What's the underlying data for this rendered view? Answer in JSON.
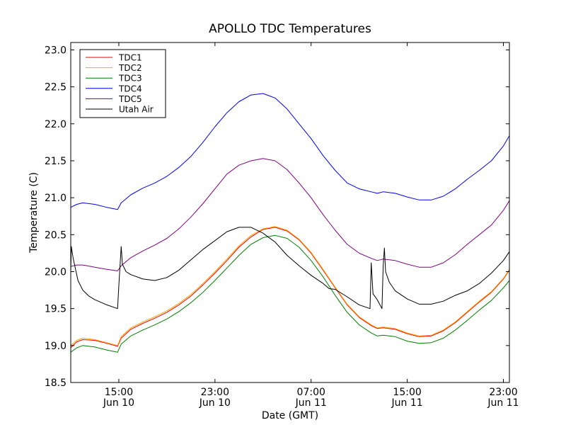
{
  "chart_data": {
    "type": "line",
    "title": "APOLLO TDC Temperatures",
    "xlabel": "Date (GMT)",
    "ylabel": "Temperature (C)",
    "x_unit": "hours since Jun 10 00:00 GMT",
    "xlim": [
      11.0,
      47.5
    ],
    "ylim": [
      18.5,
      23.1
    ],
    "y_ticks": [
      {
        "value": 18.5,
        "label": "18.5"
      },
      {
        "value": 19.0,
        "label": "19.0"
      },
      {
        "value": 19.5,
        "label": "19.5"
      },
      {
        "value": 20.0,
        "label": "20.0"
      },
      {
        "value": 20.5,
        "label": "20.5"
      },
      {
        "value": 21.0,
        "label": "21.0"
      },
      {
        "value": 21.5,
        "label": "21.5"
      },
      {
        "value": 22.0,
        "label": "22.0"
      },
      {
        "value": 22.5,
        "label": "22.5"
      },
      {
        "value": 23.0,
        "label": "23.0"
      }
    ],
    "x_ticks": [
      {
        "value": 15,
        "time": "15:00",
        "date": "Jun 10"
      },
      {
        "value": 23,
        "time": "23:00",
        "date": "Jun 10"
      },
      {
        "value": 31,
        "time": "07:00",
        "date": "Jun 11"
      },
      {
        "value": 39,
        "time": "15:00",
        "date": "Jun 11"
      },
      {
        "value": 47,
        "time": "23:00",
        "date": "Jun 11"
      }
    ],
    "legend_position": "top-left",
    "grid": false,
    "series": [
      {
        "name": "TDC1",
        "color": "#ff0000",
        "points": [
          [
            11,
            18.97
          ],
          [
            11.5,
            19.05
          ],
          [
            12,
            19.08
          ],
          [
            13,
            19.07
          ],
          [
            14,
            19.03
          ],
          [
            14.9,
            18.99
          ],
          [
            15.2,
            19.1
          ],
          [
            16,
            19.22
          ],
          [
            17,
            19.3
          ],
          [
            18,
            19.37
          ],
          [
            19,
            19.45
          ],
          [
            20,
            19.55
          ],
          [
            21,
            19.67
          ],
          [
            22,
            19.82
          ],
          [
            23,
            19.98
          ],
          [
            24,
            20.15
          ],
          [
            25,
            20.33
          ],
          [
            26,
            20.47
          ],
          [
            27,
            20.57
          ],
          [
            28,
            20.6
          ],
          [
            29,
            20.55
          ],
          [
            30,
            20.43
          ],
          [
            31,
            20.25
          ],
          [
            32,
            20.02
          ],
          [
            33,
            19.78
          ],
          [
            34,
            19.55
          ],
          [
            35,
            19.38
          ],
          [
            36,
            19.27
          ],
          [
            36.5,
            19.23
          ],
          [
            37,
            19.24
          ],
          [
            38,
            19.22
          ],
          [
            39,
            19.16
          ],
          [
            40,
            19.12
          ],
          [
            41,
            19.13
          ],
          [
            42,
            19.2
          ],
          [
            43,
            19.31
          ],
          [
            44,
            19.45
          ],
          [
            45,
            19.59
          ],
          [
            46,
            19.72
          ],
          [
            47,
            19.9
          ],
          [
            47.5,
            20.02
          ]
        ]
      },
      {
        "name": "TDC2",
        "color": "#ffa500",
        "points": [
          [
            11,
            19.0
          ],
          [
            11.5,
            19.07
          ],
          [
            12,
            19.1
          ],
          [
            13,
            19.08
          ],
          [
            14,
            19.04
          ],
          [
            14.9,
            19.0
          ],
          [
            15.2,
            19.12
          ],
          [
            16,
            19.24
          ],
          [
            17,
            19.32
          ],
          [
            18,
            19.39
          ],
          [
            19,
            19.47
          ],
          [
            20,
            19.57
          ],
          [
            21,
            19.69
          ],
          [
            22,
            19.84
          ],
          [
            23,
            20.0
          ],
          [
            24,
            20.17
          ],
          [
            25,
            20.35
          ],
          [
            26,
            20.49
          ],
          [
            27,
            20.58
          ],
          [
            28,
            20.61
          ],
          [
            29,
            20.56
          ],
          [
            30,
            20.44
          ],
          [
            31,
            20.26
          ],
          [
            32,
            20.03
          ],
          [
            33,
            19.79
          ],
          [
            34,
            19.56
          ],
          [
            35,
            19.39
          ],
          [
            36,
            19.28
          ],
          [
            36.5,
            19.24
          ],
          [
            37,
            19.25
          ],
          [
            38,
            19.23
          ],
          [
            39,
            19.17
          ],
          [
            40,
            19.13
          ],
          [
            41,
            19.14
          ],
          [
            42,
            19.21
          ],
          [
            43,
            19.32
          ],
          [
            44,
            19.46
          ],
          [
            45,
            19.6
          ],
          [
            46,
            19.73
          ],
          [
            47,
            19.91
          ],
          [
            47.5,
            20.03
          ]
        ]
      },
      {
        "name": "TDC3",
        "color": "#008000",
        "points": [
          [
            11,
            18.91
          ],
          [
            11.5,
            18.97
          ],
          [
            12,
            19.0
          ],
          [
            13,
            18.98
          ],
          [
            14,
            18.94
          ],
          [
            14.9,
            18.91
          ],
          [
            15.2,
            19.02
          ],
          [
            16,
            19.13
          ],
          [
            17,
            19.21
          ],
          [
            18,
            19.28
          ],
          [
            19,
            19.36
          ],
          [
            20,
            19.46
          ],
          [
            21,
            19.58
          ],
          [
            22,
            19.72
          ],
          [
            23,
            19.88
          ],
          [
            24,
            20.05
          ],
          [
            25,
            20.22
          ],
          [
            26,
            20.37
          ],
          [
            27,
            20.46
          ],
          [
            28,
            20.49
          ],
          [
            29,
            20.45
          ],
          [
            30,
            20.33
          ],
          [
            31,
            20.15
          ],
          [
            32,
            19.93
          ],
          [
            33,
            19.68
          ],
          [
            34,
            19.45
          ],
          [
            35,
            19.28
          ],
          [
            36,
            19.17
          ],
          [
            36.5,
            19.13
          ],
          [
            37,
            19.14
          ],
          [
            38,
            19.12
          ],
          [
            39,
            19.06
          ],
          [
            40,
            19.03
          ],
          [
            41,
            19.04
          ],
          [
            42,
            19.1
          ],
          [
            43,
            19.21
          ],
          [
            44,
            19.34
          ],
          [
            45,
            19.48
          ],
          [
            46,
            19.61
          ],
          [
            47,
            19.78
          ],
          [
            47.5,
            19.88
          ]
        ]
      },
      {
        "name": "TDC4",
        "color": "#0000ff",
        "points": [
          [
            11,
            20.87
          ],
          [
            11.5,
            20.91
          ],
          [
            12,
            20.93
          ],
          [
            13,
            20.91
          ],
          [
            14,
            20.87
          ],
          [
            14.9,
            20.84
          ],
          [
            15.2,
            20.93
          ],
          [
            16,
            21.04
          ],
          [
            17,
            21.13
          ],
          [
            18,
            21.2
          ],
          [
            19,
            21.29
          ],
          [
            20,
            21.41
          ],
          [
            21,
            21.56
          ],
          [
            22,
            21.75
          ],
          [
            23,
            21.96
          ],
          [
            24,
            22.15
          ],
          [
            25,
            22.3
          ],
          [
            26,
            22.39
          ],
          [
            27,
            22.41
          ],
          [
            28,
            22.35
          ],
          [
            29,
            22.2
          ],
          [
            30,
            22.0
          ],
          [
            31,
            21.8
          ],
          [
            32,
            21.57
          ],
          [
            33,
            21.37
          ],
          [
            34,
            21.2
          ],
          [
            35,
            21.12
          ],
          [
            36,
            21.08
          ],
          [
            36.5,
            21.06
          ],
          [
            37,
            21.08
          ],
          [
            38,
            21.06
          ],
          [
            39,
            21.01
          ],
          [
            40,
            20.97
          ],
          [
            41,
            20.97
          ],
          [
            42,
            21.02
          ],
          [
            43,
            21.12
          ],
          [
            44,
            21.25
          ],
          [
            45,
            21.37
          ],
          [
            46,
            21.5
          ],
          [
            47,
            21.7
          ],
          [
            47.5,
            21.84
          ]
        ]
      },
      {
        "name": "TDC5",
        "color": "#800080",
        "points": [
          [
            11,
            20.07
          ],
          [
            11.5,
            20.09
          ],
          [
            12,
            20.09
          ],
          [
            13,
            20.06
          ],
          [
            14,
            20.03
          ],
          [
            14.9,
            20.01
          ],
          [
            15.2,
            20.08
          ],
          [
            16,
            20.19
          ],
          [
            17,
            20.28
          ],
          [
            18,
            20.36
          ],
          [
            19,
            20.45
          ],
          [
            20,
            20.58
          ],
          [
            21,
            20.74
          ],
          [
            22,
            20.92
          ],
          [
            23,
            21.12
          ],
          [
            24,
            21.32
          ],
          [
            25,
            21.44
          ],
          [
            26,
            21.5
          ],
          [
            27,
            21.53
          ],
          [
            28,
            21.5
          ],
          [
            29,
            21.38
          ],
          [
            30,
            21.2
          ],
          [
            31,
            21.0
          ],
          [
            32,
            20.77
          ],
          [
            33,
            20.56
          ],
          [
            34,
            20.37
          ],
          [
            35,
            20.25
          ],
          [
            36,
            20.18
          ],
          [
            36.5,
            20.15
          ],
          [
            37,
            20.17
          ],
          [
            38,
            20.15
          ],
          [
            39,
            20.1
          ],
          [
            40,
            20.06
          ],
          [
            41,
            20.06
          ],
          [
            42,
            20.12
          ],
          [
            43,
            20.23
          ],
          [
            44,
            20.37
          ],
          [
            45,
            20.5
          ],
          [
            46,
            20.63
          ],
          [
            47,
            20.83
          ],
          [
            47.5,
            20.96
          ]
        ]
      },
      {
        "name": "Utah Air",
        "color": "#000000",
        "points": [
          [
            11,
            20.0
          ],
          [
            11.05,
            20.34
          ],
          [
            11.2,
            20.18
          ],
          [
            11.6,
            19.88
          ],
          [
            12,
            19.75
          ],
          [
            12.5,
            19.67
          ],
          [
            13,
            19.62
          ],
          [
            14,
            19.55
          ],
          [
            14.9,
            19.5
          ],
          [
            15,
            19.8
          ],
          [
            15.2,
            20.34
          ],
          [
            15.3,
            20.1
          ],
          [
            15.6,
            20.0
          ],
          [
            16,
            19.96
          ],
          [
            17,
            19.9
          ],
          [
            18,
            19.88
          ],
          [
            19,
            19.92
          ],
          [
            20,
            20.02
          ],
          [
            21,
            20.16
          ],
          [
            22,
            20.3
          ],
          [
            23,
            20.42
          ],
          [
            24,
            20.54
          ],
          [
            25,
            20.6
          ],
          [
            26,
            20.6
          ],
          [
            27,
            20.52
          ],
          [
            28,
            20.4
          ],
          [
            29,
            20.22
          ],
          [
            30,
            20.08
          ],
          [
            31,
            19.95
          ],
          [
            32,
            19.84
          ],
          [
            32.5,
            19.77
          ],
          [
            33,
            19.76
          ],
          [
            34,
            19.66
          ],
          [
            35,
            19.55
          ],
          [
            35.9,
            19.5
          ],
          [
            36,
            20.12
          ],
          [
            36.15,
            19.7
          ],
          [
            36.5,
            19.62
          ],
          [
            36.9,
            19.5
          ],
          [
            37,
            20.08
          ],
          [
            37.1,
            20.32
          ],
          [
            37.2,
            20.0
          ],
          [
            37.5,
            19.86
          ],
          [
            38,
            19.74
          ],
          [
            39,
            19.63
          ],
          [
            40,
            19.56
          ],
          [
            41,
            19.56
          ],
          [
            42,
            19.6
          ],
          [
            43,
            19.68
          ],
          [
            44,
            19.74
          ],
          [
            45,
            19.84
          ],
          [
            46,
            19.98
          ],
          [
            47,
            20.15
          ],
          [
            47.5,
            20.27
          ]
        ]
      }
    ]
  }
}
